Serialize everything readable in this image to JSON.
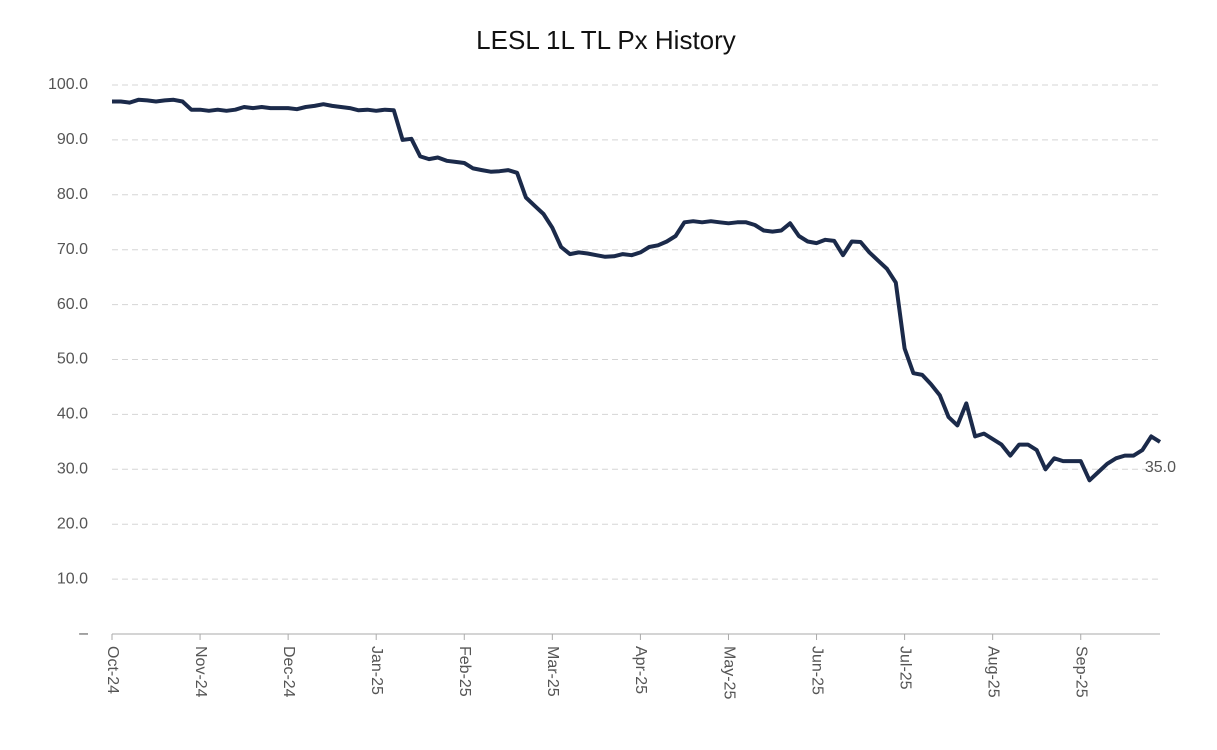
{
  "chart_data": {
    "type": "line",
    "title": "LESL 1L TL Px History",
    "categories": [
      "Oct-24",
      null,
      null,
      null,
      null,
      null,
      null,
      null,
      null,
      null,
      "Nov-24",
      null,
      null,
      null,
      null,
      null,
      null,
      null,
      null,
      null,
      "Dec-24",
      null,
      null,
      null,
      null,
      null,
      null,
      null,
      null,
      null,
      "Jan-25",
      null,
      null,
      null,
      null,
      null,
      null,
      null,
      null,
      null,
      "Feb-25",
      null,
      null,
      null,
      null,
      null,
      null,
      null,
      null,
      null,
      "Mar-25",
      null,
      null,
      null,
      null,
      null,
      null,
      null,
      null,
      null,
      "Apr-25",
      null,
      null,
      null,
      null,
      null,
      null,
      null,
      null,
      null,
      "May-25",
      null,
      null,
      null,
      null,
      null,
      null,
      null,
      null,
      null,
      "Jun-25",
      null,
      null,
      null,
      null,
      null,
      null,
      null,
      null,
      null,
      "Jul-25",
      null,
      null,
      null,
      null,
      null,
      null,
      null,
      null,
      null,
      "Aug-25",
      null,
      null,
      null,
      null,
      null,
      null,
      null,
      null,
      null,
      "Sep-25",
      null,
      null,
      null,
      null,
      null,
      null,
      null,
      null,
      null
    ],
    "values": [
      97,
      97,
      96.8,
      97.3,
      97.2,
      97,
      97.2,
      97.3,
      97,
      95.5,
      95.5,
      95.3,
      95.5,
      95.3,
      95.5,
      96,
      95.8,
      96,
      95.8,
      95.8,
      95.8,
      95.6,
      96,
      96.2,
      96.5,
      96.2,
      96,
      95.8,
      95.4,
      95.5,
      95.3,
      95.5,
      95.4,
      90,
      90.2,
      87,
      86.5,
      86.8,
      86.2,
      86,
      85.8,
      84.8,
      84.5,
      84.2,
      84.3,
      84.5,
      84,
      79.5,
      78,
      76.5,
      74,
      70.5,
      69.2,
      69.5,
      69.3,
      69,
      68.7,
      68.8,
      69.2,
      69,
      69.5,
      70.5,
      70.8,
      71.5,
      72.5,
      75,
      75.2,
      75,
      75.2,
      75,
      74.8,
      75,
      75,
      74.5,
      73.5,
      73.3,
      73.5,
      74.8,
      72.5,
      71.5,
      71.2,
      71.8,
      71.6,
      69,
      71.5,
      71.4,
      69.5,
      68,
      66.5,
      64,
      52,
      47.5,
      47.2,
      45.5,
      43.5,
      39.5,
      38,
      42,
      36,
      36.5,
      35.5,
      34.5,
      32.5,
      34.5,
      34.5,
      33.5,
      30,
      32,
      31.5,
      31.5,
      31.5,
      28,
      29.5,
      31,
      32,
      32.5,
      32.5,
      33.5,
      36,
      35
    ],
    "value_labels": [
      null,
      null,
      null,
      null,
      null,
      null,
      null,
      null,
      null,
      null,
      null,
      null,
      null,
      null,
      null,
      null,
      null,
      null,
      null,
      null,
      null,
      null,
      null,
      null,
      null,
      null,
      null,
      null,
      null,
      null,
      null,
      null,
      null,
      null,
      null,
      null,
      null,
      null,
      null,
      null,
      null,
      null,
      null,
      null,
      null,
      null,
      null,
      null,
      null,
      null,
      null,
      null,
      null,
      null,
      null,
      null,
      null,
      null,
      null,
      null,
      null,
      null,
      null,
      null,
      null,
      null,
      null,
      null,
      null,
      null,
      null,
      null,
      null,
      null,
      null,
      null,
      null,
      null,
      null,
      null,
      null,
      null,
      null,
      null,
      null,
      null,
      null,
      null,
      null,
      null,
      null,
      null,
      null,
      null,
      null,
      null,
      null,
      null,
      null,
      null,
      null,
      null,
      null,
      null,
      null,
      null,
      null,
      null,
      null,
      null,
      null,
      null,
      null,
      null,
      null,
      null,
      null,
      null,
      null,
      "35.0"
    ],
    "color": "#1b2a4a",
    "ylim": [
      0,
      100
    ],
    "yticks": [
      {
        "value": 0,
        "label": "–"
      },
      {
        "value": 10,
        "label": "10.0"
      },
      {
        "value": 20,
        "label": "20.0"
      },
      {
        "value": 30,
        "label": "30.0"
      },
      {
        "value": 40,
        "label": "40.0"
      },
      {
        "value": 50,
        "label": "50.0"
      },
      {
        "value": 60,
        "label": "60.0"
      },
      {
        "value": 70,
        "label": "70.0"
      },
      {
        "value": 80,
        "label": "80.0"
      },
      {
        "value": 90,
        "label": "90.0"
      },
      {
        "value": 100,
        "label": "100.0"
      }
    ],
    "grid": true
  }
}
